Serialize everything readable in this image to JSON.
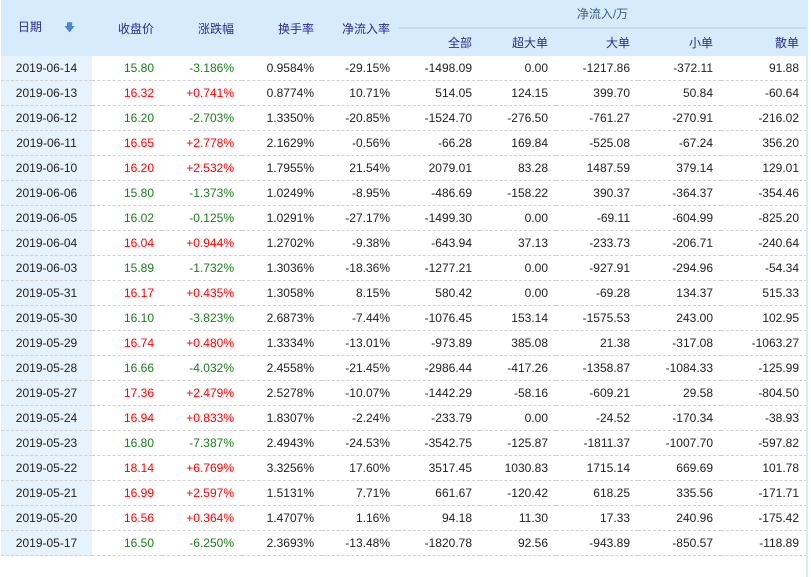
{
  "colors": {
    "up": "#ff0000",
    "down": "#1a7d1a",
    "header_bg": "#d6ebfb"
  },
  "header": {
    "date": "日期",
    "sort_icon": "arrow-down-icon",
    "close": "收盘价",
    "change": "涨跌幅",
    "turnover": "换手率",
    "net_rate": "净流入率",
    "group": "净流入/万",
    "sub": [
      "全部",
      "超大单",
      "大单",
      "小单",
      "散单"
    ]
  },
  "rows": [
    [
      "2019-06-14",
      "15.80",
      "-3.186%",
      "0.9584%",
      "-29.15%",
      "-1498.09",
      "0.00",
      "-1217.86",
      "-372.11",
      "91.88"
    ],
    [
      "2019-06-13",
      "16.32",
      "+0.741%",
      "0.8774%",
      "10.71%",
      "514.05",
      "124.15",
      "399.70",
      "50.84",
      "-60.64"
    ],
    [
      "2019-06-12",
      "16.20",
      "-2.703%",
      "1.3350%",
      "-20.85%",
      "-1524.70",
      "-276.50",
      "-761.27",
      "-270.91",
      "-216.02"
    ],
    [
      "2019-06-11",
      "16.65",
      "+2.778%",
      "2.1629%",
      "-0.56%",
      "-66.28",
      "169.84",
      "-525.08",
      "-67.24",
      "356.20"
    ],
    [
      "2019-06-10",
      "16.20",
      "+2.532%",
      "1.7955%",
      "21.54%",
      "2079.01",
      "83.28",
      "1487.59",
      "379.14",
      "129.01"
    ],
    [
      "2019-06-06",
      "15.80",
      "-1.373%",
      "1.0249%",
      "-8.95%",
      "-486.69",
      "-158.22",
      "390.37",
      "-364.37",
      "-354.46"
    ],
    [
      "2019-06-05",
      "16.02",
      "-0.125%",
      "1.0291%",
      "-27.17%",
      "-1499.30",
      "0.00",
      "-69.11",
      "-604.99",
      "-825.20"
    ],
    [
      "2019-06-04",
      "16.04",
      "+0.944%",
      "1.2702%",
      "-9.38%",
      "-643.94",
      "37.13",
      "-233.73",
      "-206.71",
      "-240.64"
    ],
    [
      "2019-06-03",
      "15.89",
      "-1.732%",
      "1.3036%",
      "-18.36%",
      "-1277.21",
      "0.00",
      "-927.91",
      "-294.96",
      "-54.34"
    ],
    [
      "2019-05-31",
      "16.17",
      "+0.435%",
      "1.3058%",
      "8.15%",
      "580.42",
      "0.00",
      "-69.28",
      "134.37",
      "515.33"
    ],
    [
      "2019-05-30",
      "16.10",
      "-3.823%",
      "2.6873%",
      "-7.44%",
      "-1076.45",
      "153.14",
      "-1575.53",
      "243.00",
      "102.95"
    ],
    [
      "2019-05-29",
      "16.74",
      "+0.480%",
      "1.3334%",
      "-13.01%",
      "-973.89",
      "385.08",
      "21.38",
      "-317.08",
      "-1063.27"
    ],
    [
      "2019-05-28",
      "16.66",
      "-4.032%",
      "2.4558%",
      "-21.45%",
      "-2986.44",
      "-417.26",
      "-1358.87",
      "-1084.33",
      "-125.99"
    ],
    [
      "2019-05-27",
      "17.36",
      "+2.479%",
      "2.5278%",
      "-10.07%",
      "-1442.29",
      "-58.16",
      "-609.21",
      "29.58",
      "-804.50"
    ],
    [
      "2019-05-24",
      "16.94",
      "+0.833%",
      "1.8307%",
      "-2.24%",
      "-233.79",
      "0.00",
      "-24.52",
      "-170.34",
      "-38.93"
    ],
    [
      "2019-05-23",
      "16.80",
      "-7.387%",
      "2.4943%",
      "-24.53%",
      "-3542.75",
      "-125.87",
      "-1811.37",
      "-1007.70",
      "-597.82"
    ],
    [
      "2019-05-22",
      "18.14",
      "+6.769%",
      "3.3256%",
      "17.60%",
      "3517.45",
      "1030.83",
      "1715.14",
      "669.69",
      "101.78"
    ],
    [
      "2019-05-21",
      "16.99",
      "+2.597%",
      "1.5131%",
      "7.71%",
      "661.67",
      "-120.42",
      "618.25",
      "335.56",
      "-171.71"
    ],
    [
      "2019-05-20",
      "16.56",
      "+0.364%",
      "1.4707%",
      "1.16%",
      "94.18",
      "11.30",
      "17.33",
      "240.96",
      "-175.42"
    ],
    [
      "2019-05-17",
      "16.50",
      "-6.250%",
      "2.3693%",
      "-13.48%",
      "-1820.78",
      "92.56",
      "-943.89",
      "-850.57",
      "-118.89"
    ]
  ]
}
